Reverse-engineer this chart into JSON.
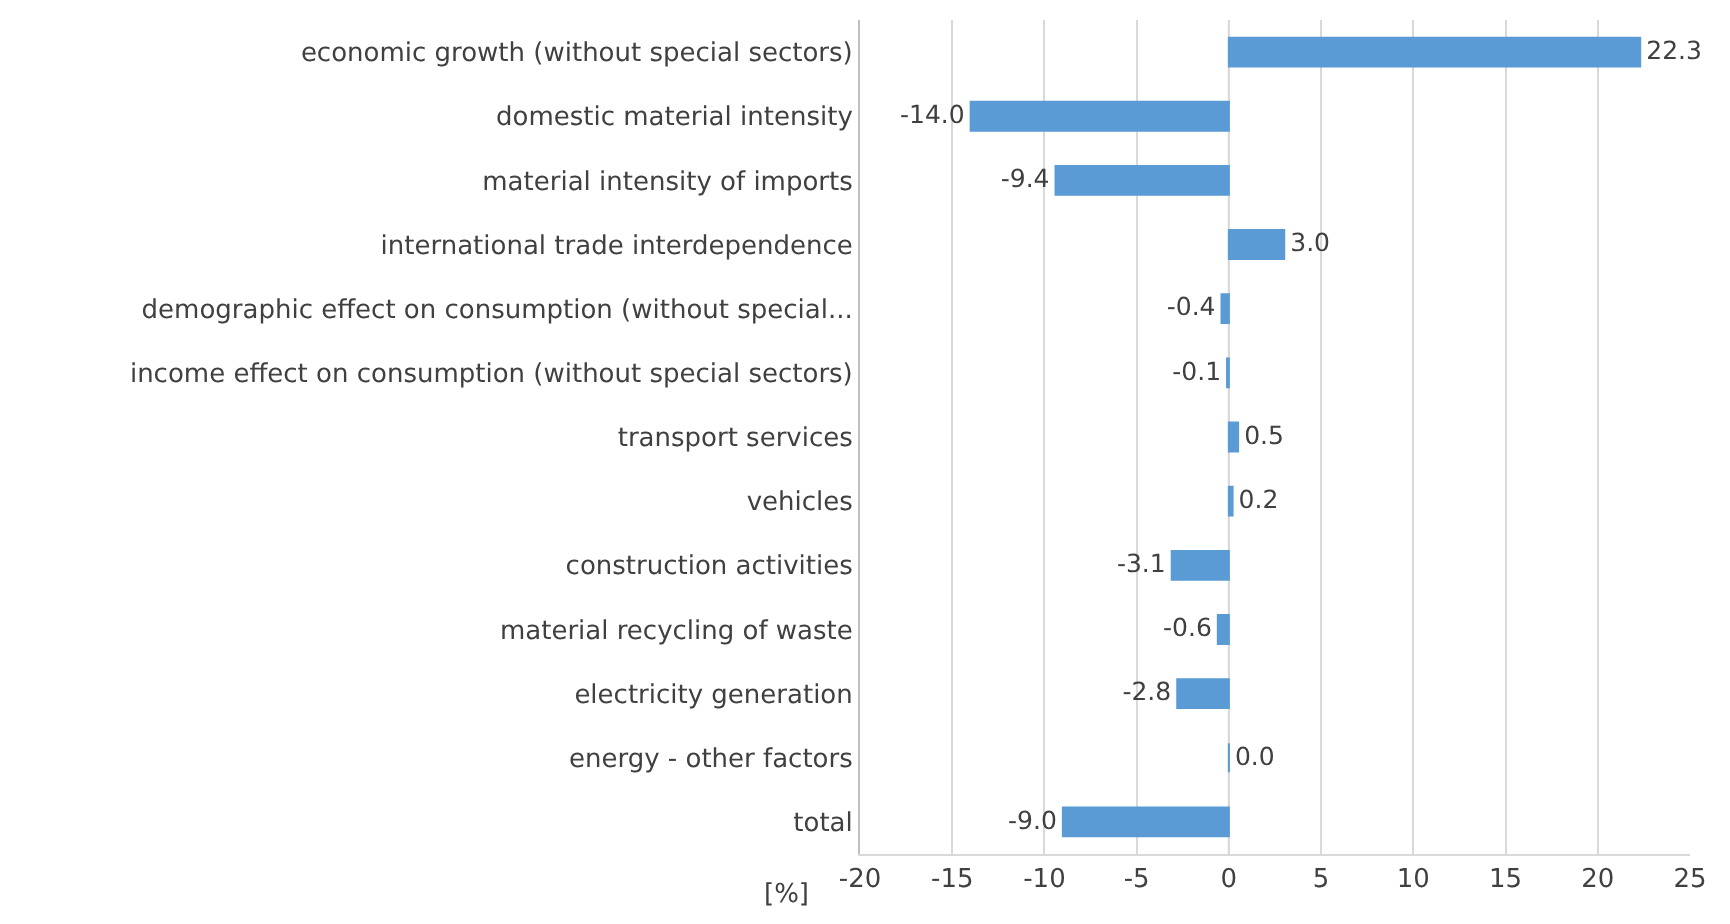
{
  "chart_data": {
    "type": "bar",
    "orientation": "horizontal",
    "xlabel": "[%]",
    "categories": [
      "economic growth (without special sectors)",
      "domestic material intensity",
      "material intensity of imports",
      "international trade interdependence",
      "demographic effect on consumption (without special...",
      "income effect on consumption (without special sectors)",
      "transport services",
      "vehicles",
      "construction activities",
      "material recycling of waste",
      "electricity generation",
      "energy - other factors",
      "total"
    ],
    "values": [
      22.3,
      -14.0,
      -9.4,
      3.0,
      -0.4,
      -0.1,
      0.5,
      0.2,
      -3.1,
      -0.6,
      -2.8,
      0.0,
      -9.0
    ],
    "value_labels": [
      "22.3",
      "-14.0",
      "-9.4",
      "3.0",
      "-0.4",
      "-0.1",
      "0.5",
      "0.2",
      "-3.1",
      "-0.6",
      "-2.8",
      "0.0",
      "-9.0"
    ],
    "color": "#5b9bd5",
    "xlim": [
      -20,
      25
    ],
    "xticks": [
      -20,
      -15,
      -10,
      -5,
      0,
      5,
      10,
      15,
      20,
      25
    ],
    "grid": "x"
  }
}
